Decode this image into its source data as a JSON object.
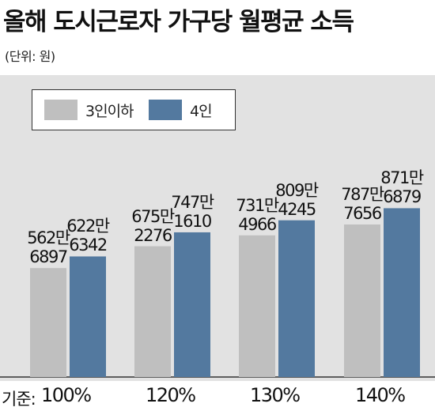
{
  "header": {
    "title": "올해 도시근로자 가구당 월평균 소득",
    "unit": "(단위: 원)"
  },
  "footer": {
    "basis_label": "기준:"
  },
  "colors": {
    "series_3": "#bfbfbf",
    "series_4": "#53799f",
    "background": "#e2e2e2"
  },
  "chart_data": {
    "type": "bar",
    "title": "올해 도시근로자 가구당 월평균 소득",
    "unit": "(단위: 원)",
    "categories": [
      "100%",
      "120%",
      "130%",
      "140%"
    ],
    "category_prefix": "기준:",
    "series": [
      {
        "name": "3인이하",
        "values": [
          5626897,
          6752276,
          7314966,
          7877656
        ],
        "labels": [
          [
            "562만",
            "6897"
          ],
          [
            "675만",
            "2276"
          ],
          [
            "731만",
            "4966"
          ],
          [
            "787만",
            "7656"
          ]
        ]
      },
      {
        "name": "4인",
        "values": [
          6226342,
          7471610,
          8094245,
          8716879
        ],
        "labels": [
          [
            "622만",
            "6342"
          ],
          [
            "747만",
            "1610"
          ],
          [
            "809만",
            "4245"
          ],
          [
            "871만",
            "6879"
          ]
        ]
      }
    ],
    "ylim": [
      0,
      10000000
    ],
    "legend": "top-left",
    "grid": false
  }
}
